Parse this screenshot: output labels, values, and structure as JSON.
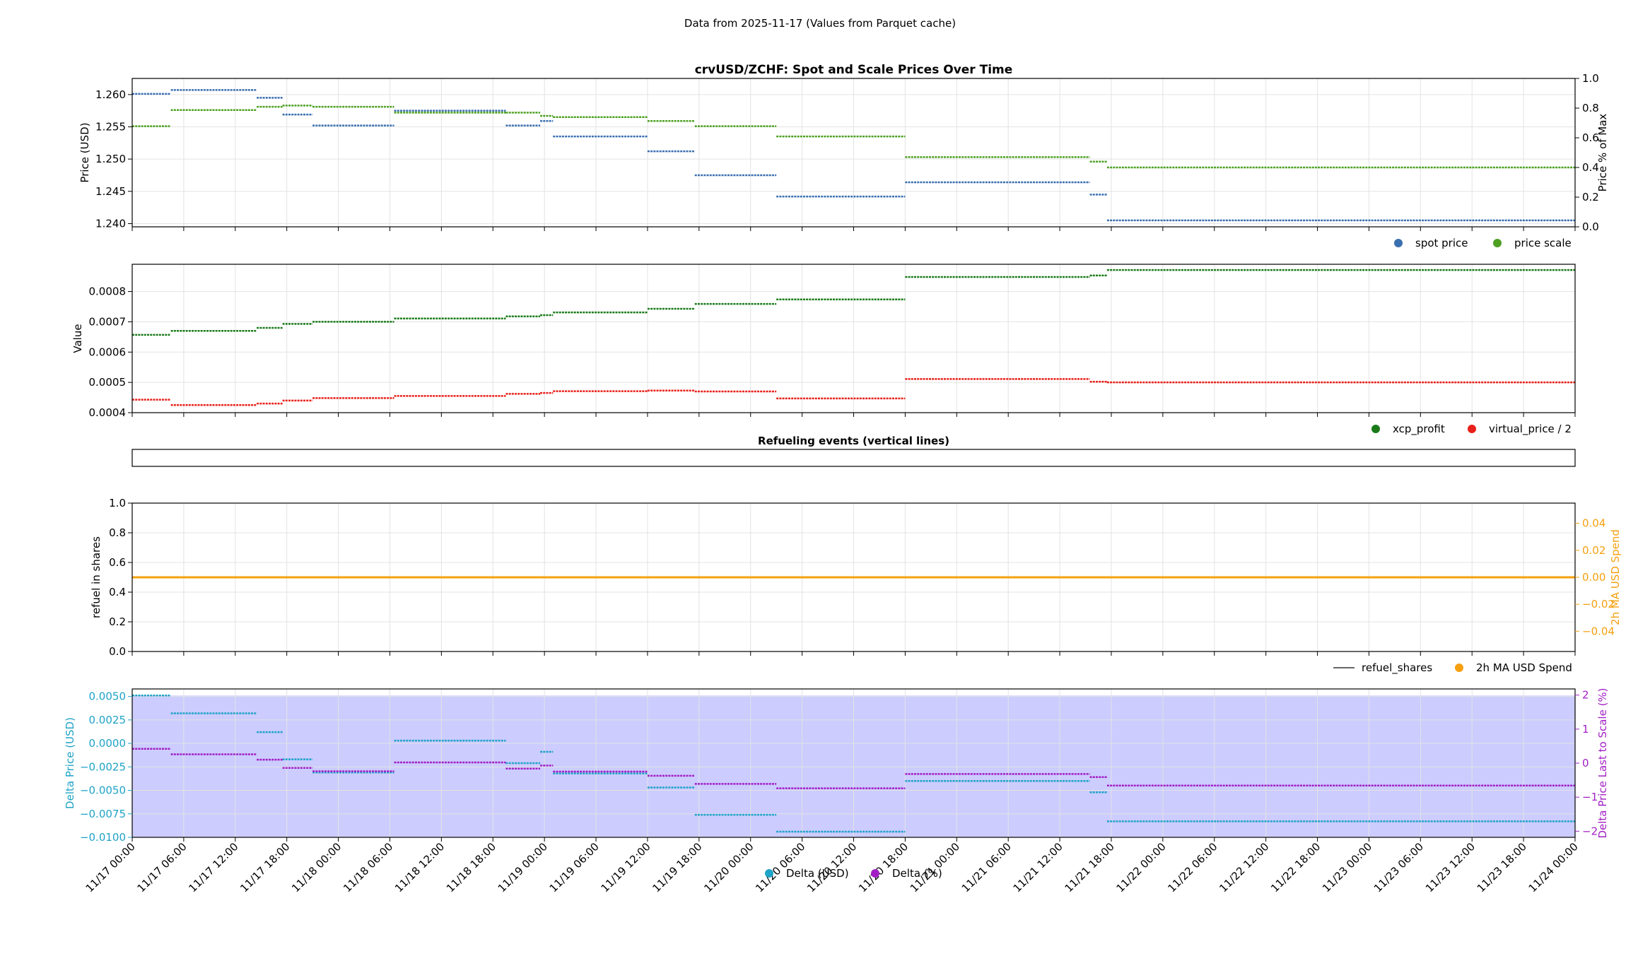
{
  "header": {
    "caption": "Data from 2025-11-17 (Values from Parquet cache)"
  },
  "colors": {
    "spot": "#3a6fb0",
    "scale": "#4da022",
    "xcp": "#1a7a1a",
    "virtual": "#e8201a",
    "refuel": "#333333",
    "usd_spend": "#f5a010",
    "delta_usd": "#1fa3c6",
    "delta_pct": "#a21ec4",
    "shade": "#c9c9ff"
  },
  "x_ticks": [
    "11/17 00:00",
    "11/17 06:00",
    "11/17 12:00",
    "11/17 18:00",
    "11/18 00:00",
    "11/18 06:00",
    "11/18 12:00",
    "11/18 18:00",
    "11/19 00:00",
    "11/19 06:00",
    "11/19 12:00",
    "11/19 18:00",
    "11/20 00:00",
    "11/20 06:00",
    "11/20 12:00",
    "11/20 18:00",
    "11/21 00:00",
    "11/21 06:00",
    "11/21 12:00",
    "11/21 18:00",
    "11/22 00:00",
    "11/22 06:00",
    "11/22 12:00",
    "11/22 18:00",
    "11/23 00:00",
    "11/23 06:00",
    "11/23 12:00",
    "11/23 18:00",
    "11/24 00:00"
  ],
  "chart_data": [
    {
      "type": "line",
      "title": "crvUSD/ZCHF: Spot and Scale Prices Over Time",
      "xlabel": "",
      "ylabel": "Price (USD)",
      "ylabel_right": "Price % of Max",
      "x_range": [
        "11/17 00:00",
        "11/24 00:00"
      ],
      "ylim": [
        1.2395,
        1.2625
      ],
      "yticks": [
        "1.240",
        "1.245",
        "1.250",
        "1.255",
        "1.260"
      ],
      "ylim_right": [
        0.0,
        1.0
      ],
      "yticks_right": [
        "0.0",
        "0.2",
        "0.4",
        "0.6",
        "0.8",
        "1.0"
      ],
      "legend": "below-right",
      "grid": true,
      "series": [
        {
          "name": "spot price",
          "color_key": "spot",
          "steps": [
            {
              "from": "11/17 00:00",
              "to": "11/17 04:30",
              "y": 1.2601
            },
            {
              "from": "11/17 04:30",
              "to": "11/17 14:30",
              "y": 1.2607
            },
            {
              "from": "11/17 14:30",
              "to": "11/17 17:30",
              "y": 1.2595
            },
            {
              "from": "11/17 17:30",
              "to": "11/17 21:00",
              "y": 1.2569
            },
            {
              "from": "11/17 21:00",
              "to": "11/18 06:30",
              "y": 1.2552
            },
            {
              "from": "11/18 06:30",
              "to": "11/18 19:30",
              "y": 1.2575
            },
            {
              "from": "11/18 19:30",
              "to": "11/18 23:30",
              "y": 1.2552
            },
            {
              "from": "11/18 23:30",
              "to": "11/19 01:00",
              "y": 1.2559
            },
            {
              "from": "11/19 01:00",
              "to": "11/19 12:00",
              "y": 1.2535
            },
            {
              "from": "11/19 12:00",
              "to": "11/19 17:30",
              "y": 1.2512
            },
            {
              "from": "11/19 17:30",
              "to": "11/20 03:00",
              "y": 1.2475
            },
            {
              "from": "11/20 03:00",
              "to": "11/20 18:00",
              "y": 1.2442
            },
            {
              "from": "11/20 18:00",
              "to": "11/21 15:30",
              "y": 1.2464
            },
            {
              "from": "11/21 15:30",
              "to": "11/21 17:30",
              "y": 1.2445
            },
            {
              "from": "11/21 17:30",
              "to": "11/24 00:00",
              "y": 1.2405
            }
          ]
        },
        {
          "name": "price scale",
          "color_key": "scale",
          "steps": [
            {
              "from": "11/17 00:00",
              "to": "11/17 04:30",
              "y": 1.2551
            },
            {
              "from": "11/17 04:30",
              "to": "11/17 14:30",
              "y": 1.2576
            },
            {
              "from": "11/17 14:30",
              "to": "11/17 17:30",
              "y": 1.2581
            },
            {
              "from": "11/17 17:30",
              "to": "11/17 21:00",
              "y": 1.2583
            },
            {
              "from": "11/17 21:00",
              "to": "11/18 06:30",
              "y": 1.2581
            },
            {
              "from": "11/18 06:30",
              "to": "11/18 19:30",
              "y": 1.2572
            },
            {
              "from": "11/18 19:30",
              "to": "11/18 23:30",
              "y": 1.2572
            },
            {
              "from": "11/18 23:30",
              "to": "11/19 01:00",
              "y": 1.2567
            },
            {
              "from": "11/19 01:00",
              "to": "11/19 12:00",
              "y": 1.2565
            },
            {
              "from": "11/19 12:00",
              "to": "11/19 17:30",
              "y": 1.2559
            },
            {
              "from": "11/19 17:30",
              "to": "11/20 03:00",
              "y": 1.2551
            },
            {
              "from": "11/20 03:00",
              "to": "11/20 18:00",
              "y": 1.2535
            },
            {
              "from": "11/20 18:00",
              "to": "11/21 15:30",
              "y": 1.2503
            },
            {
              "from": "11/21 15:30",
              "to": "11/21 17:30",
              "y": 1.2496
            },
            {
              "from": "11/21 17:30",
              "to": "11/24 00:00",
              "y": 1.2487
            }
          ]
        }
      ]
    },
    {
      "type": "line",
      "title": "",
      "xlabel": "",
      "ylabel": "Value",
      "x_range": [
        "11/17 00:00",
        "11/24 00:00"
      ],
      "ylim": [
        0.0004,
        0.00089
      ],
      "yticks": [
        "0.0004",
        "0.0005",
        "0.0006",
        "0.0007",
        "0.0008"
      ],
      "legend": "below-right",
      "grid": true,
      "series": [
        {
          "name": "xcp_profit",
          "color_key": "xcp",
          "steps": [
            {
              "from": "11/17 00:00",
              "to": "11/17 04:30",
              "y": 0.000657
            },
            {
              "from": "11/17 04:30",
              "to": "11/17 14:30",
              "y": 0.00067
            },
            {
              "from": "11/17 14:30",
              "to": "11/17 17:30",
              "y": 0.00068
            },
            {
              "from": "11/17 17:30",
              "to": "11/17 21:00",
              "y": 0.000693
            },
            {
              "from": "11/17 21:00",
              "to": "11/18 06:30",
              "y": 0.0007
            },
            {
              "from": "11/18 06:30",
              "to": "11/18 19:30",
              "y": 0.000711
            },
            {
              "from": "11/18 19:30",
              "to": "11/18 23:30",
              "y": 0.000718
            },
            {
              "from": "11/18 23:30",
              "to": "11/19 01:00",
              "y": 0.000722
            },
            {
              "from": "11/19 01:00",
              "to": "11/19 12:00",
              "y": 0.000731
            },
            {
              "from": "11/19 12:00",
              "to": "11/19 17:30",
              "y": 0.000743
            },
            {
              "from": "11/19 17:30",
              "to": "11/20 03:00",
              "y": 0.000759
            },
            {
              "from": "11/20 03:00",
              "to": "11/20 18:00",
              "y": 0.000774
            },
            {
              "from": "11/20 18:00",
              "to": "11/21 15:30",
              "y": 0.000848
            },
            {
              "from": "11/21 15:30",
              "to": "11/21 17:30",
              "y": 0.000853
            },
            {
              "from": "11/21 17:30",
              "to": "11/24 00:00",
              "y": 0.000871
            }
          ]
        },
        {
          "name": "virtual_price / 2",
          "color_key": "virtual",
          "steps": [
            {
              "from": "11/17 00:00",
              "to": "11/17 04:30",
              "y": 0.000443
            },
            {
              "from": "11/17 04:30",
              "to": "11/17 14:30",
              "y": 0.000425
            },
            {
              "from": "11/17 14:30",
              "to": "11/17 17:30",
              "y": 0.00043
            },
            {
              "from": "11/17 17:30",
              "to": "11/17 21:00",
              "y": 0.00044
            },
            {
              "from": "11/17 21:00",
              "to": "11/18 06:30",
              "y": 0.000448
            },
            {
              "from": "11/18 06:30",
              "to": "11/18 19:30",
              "y": 0.000455
            },
            {
              "from": "11/18 19:30",
              "to": "11/18 23:30",
              "y": 0.000462
            },
            {
              "from": "11/18 23:30",
              "to": "11/19 01:00",
              "y": 0.000465
            },
            {
              "from": "11/19 01:00",
              "to": "11/19 12:00",
              "y": 0.000471
            },
            {
              "from": "11/19 12:00",
              "to": "11/19 17:30",
              "y": 0.000473
            },
            {
              "from": "11/19 17:30",
              "to": "11/20 03:00",
              "y": 0.00047
            },
            {
              "from": "11/20 03:00",
              "to": "11/20 18:00",
              "y": 0.000447
            },
            {
              "from": "11/20 18:00",
              "to": "11/21 15:30",
              "y": 0.000511
            },
            {
              "from": "11/21 15:30",
              "to": "11/21 17:30",
              "y": 0.000502
            },
            {
              "from": "11/21 17:30",
              "to": "11/24 00:00",
              "y": 0.0005
            }
          ]
        }
      ]
    },
    {
      "type": "line",
      "title": "Refueling events (vertical lines)",
      "xlabel": "",
      "ylabel": "",
      "x_range": [
        "11/17 00:00",
        "11/24 00:00"
      ],
      "grid": false,
      "series": []
    },
    {
      "type": "line",
      "title": "",
      "xlabel": "",
      "ylabel": "refuel in shares",
      "ylabel_right": "2h MA USD Spend",
      "x_range": [
        "11/17 00:00",
        "11/24 00:00"
      ],
      "ylim": [
        0.0,
        1.0
      ],
      "yticks": [
        "0.0",
        "0.2",
        "0.4",
        "0.6",
        "0.8",
        "1.0"
      ],
      "ylim_right": [
        -0.055,
        0.055
      ],
      "yticks_right": [
        "−0.04",
        "−0.02",
        "0.00",
        "0.02",
        "0.04"
      ],
      "legend": "below-right",
      "grid": true,
      "series": [
        {
          "name": "refuel_shares",
          "color_key": "refuel",
          "values": []
        },
        {
          "name": "2h MA USD Spend",
          "color_key": "usd_spend",
          "steps": [
            {
              "from": "11/17 00:00",
              "to": "11/24 00:00",
              "y": 0.0
            }
          ]
        }
      ]
    },
    {
      "type": "line",
      "title": "",
      "xlabel": "",
      "ylabel": "Delta Price (USD)",
      "ylabel_right": "Delta Price Last to Scale (%)",
      "x_range": [
        "11/17 00:00",
        "11/24 00:00"
      ],
      "ylim": [
        -0.01,
        0.0058
      ],
      "yticks": [
        "−0.0100",
        "−0.0075",
        "−0.0050",
        "−0.0025",
        "0.0000",
        "0.0025",
        "0.0050"
      ],
      "ylim_right": [
        -2.18,
        2.18
      ],
      "yticks_right": [
        "−2",
        "−1",
        "0",
        "1",
        "2"
      ],
      "legend": "bottom-center",
      "grid": true,
      "series": [
        {
          "name": "Delta (USD)",
          "color_key": "delta_usd",
          "steps": [
            {
              "from": "11/17 00:00",
              "to": "11/17 04:30",
              "y": 0.0051
            },
            {
              "from": "11/17 04:30",
              "to": "11/17 14:30",
              "y": 0.0032
            },
            {
              "from": "11/17 14:30",
              "to": "11/17 17:30",
              "y": 0.0012
            },
            {
              "from": "11/17 17:30",
              "to": "11/17 21:00",
              "y": -0.0017
            },
            {
              "from": "11/17 21:00",
              "to": "11/18 06:30",
              "y": -0.0031
            },
            {
              "from": "11/18 06:30",
              "to": "11/18 19:30",
              "y": 0.0003
            },
            {
              "from": "11/18 19:30",
              "to": "11/18 23:30",
              "y": -0.0021
            },
            {
              "from": "11/18 23:30",
              "to": "11/19 01:00",
              "y": -0.0009
            },
            {
              "from": "11/19 01:00",
              "to": "11/19 12:00",
              "y": -0.0032
            },
            {
              "from": "11/19 12:00",
              "to": "11/19 17:30",
              "y": -0.0047
            },
            {
              "from": "11/19 17:30",
              "to": "11/20 03:00",
              "y": -0.0076
            },
            {
              "from": "11/20 03:00",
              "to": "11/20 18:00",
              "y": -0.0094
            },
            {
              "from": "11/20 18:00",
              "to": "11/21 15:30",
              "y": -0.004
            },
            {
              "from": "11/21 15:30",
              "to": "11/21 17:30",
              "y": -0.0052
            },
            {
              "from": "11/21 17:30",
              "to": "11/24 00:00",
              "y": -0.0083
            }
          ]
        },
        {
          "name": "Delta (%)",
          "color_key": "delta_pct",
          "steps": [
            {
              "from": "11/17 00:00",
              "to": "11/17 04:30",
              "y": 0.42
            },
            {
              "from": "11/17 04:30",
              "to": "11/17 14:30",
              "y": 0.26
            },
            {
              "from": "11/17 14:30",
              "to": "11/17 17:30",
              "y": 0.1
            },
            {
              "from": "11/17 17:30",
              "to": "11/17 21:00",
              "y": -0.14
            },
            {
              "from": "11/17 21:00",
              "to": "11/18 06:30",
              "y": -0.24
            },
            {
              "from": "11/18 06:30",
              "to": "11/18 19:30",
              "y": 0.02
            },
            {
              "from": "11/18 19:30",
              "to": "11/18 23:30",
              "y": -0.16
            },
            {
              "from": "11/18 23:30",
              "to": "11/19 01:00",
              "y": -0.07
            },
            {
              "from": "11/19 01:00",
              "to": "11/19 12:00",
              "y": -0.25
            },
            {
              "from": "11/19 12:00",
              "to": "11/19 17:30",
              "y": -0.37
            },
            {
              "from": "11/19 17:30",
              "to": "11/20 03:00",
              "y": -0.61
            },
            {
              "from": "11/20 03:00",
              "to": "11/20 18:00",
              "y": -0.74
            },
            {
              "from": "11/20 18:00",
              "to": "11/21 15:30",
              "y": -0.32
            },
            {
              "from": "11/21 15:30",
              "to": "11/21 17:30",
              "y": -0.41
            },
            {
              "from": "11/21 17:30",
              "to": "11/24 00:00",
              "y": -0.66
            }
          ]
        }
      ]
    }
  ]
}
